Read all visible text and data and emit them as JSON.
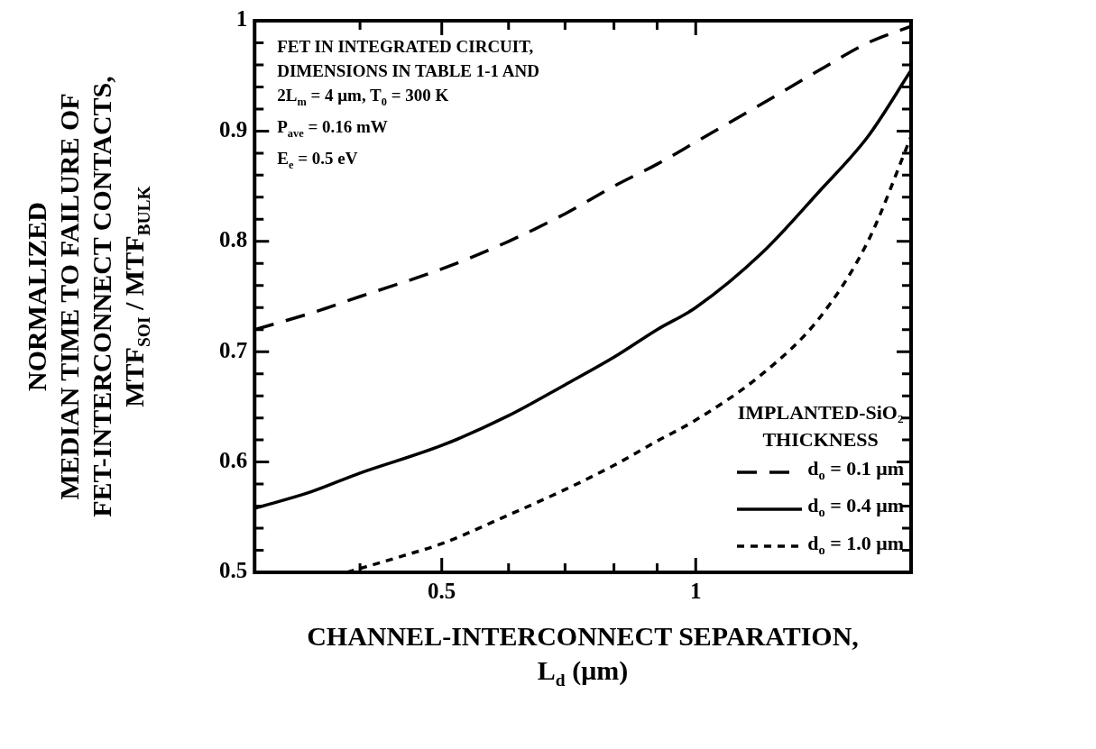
{
  "chart_data": {
    "type": "line",
    "xlabel": "CHANNEL-INTERCONNECT SEPARATION,\nL$_{d}$ (μm)",
    "ylabel": "NORMALIZED\nMEDIAN TIME TO FAILURE OF\nFET-INTERCONNECT CONTACTS,\nMTF$_{SOI}$ / MTF$_{BULK}$",
    "log": "x",
    "xlim": [
      0.3,
      1.8
    ],
    "xticks": [
      {
        "value": 0.4,
        "label": null
      },
      0.5,
      {
        "value": 0.6,
        "label": null
      },
      {
        "value": 0.7,
        "label": null
      },
      {
        "value": 0.8,
        "label": null
      },
      {
        "value": 0.9,
        "label": null
      },
      1
    ],
    "ylim": [
      0.5,
      1
    ],
    "yticks": [
      0.5,
      {
        "value": 0.52,
        "label": null
      },
      {
        "value": 0.54,
        "label": null
      },
      {
        "value": 0.56,
        "label": null
      },
      {
        "value": 0.58,
        "label": null
      },
      0.6,
      {
        "value": 0.62,
        "label": null
      },
      {
        "value": 0.64,
        "label": null
      },
      {
        "value": 0.66,
        "label": null
      },
      {
        "value": 0.68,
        "label": null
      },
      0.7,
      {
        "value": 0.72,
        "label": null
      },
      {
        "value": 0.74,
        "label": null
      },
      {
        "value": 0.76,
        "label": null
      },
      {
        "value": 0.78,
        "label": null
      },
      0.8,
      {
        "value": 0.82,
        "label": null
      },
      {
        "value": 0.84,
        "label": null
      },
      {
        "value": 0.86,
        "label": null
      },
      {
        "value": 0.88,
        "label": null
      },
      0.9,
      {
        "value": 0.92,
        "label": null
      },
      {
        "value": 0.94,
        "label": null
      },
      {
        "value": 0.96,
        "label": null
      },
      {
        "value": 0.98,
        "label": null
      },
      1
    ],
    "grid": false,
    "marker": "none",
    "legend": "bottom right",
    "legend_title": "IMPLANTED-SiO₂\nTHICKNESS",
    "annotations": [
      "FET IN INTEGRATED CIRCUIT,",
      "DIMENSIONS IN TABLE 1-1 AND",
      "2L$_{m}$ = 4 μm,  T$_{0}$ = 300 K",
      "P$_{ave}$ = 0.16 mW",
      "E$_{e}$ = 0.5 eV"
    ],
    "series": [
      {
        "name": "d$_{o}$ = 0.1 μm",
        "color": "#000000",
        "line_style": "dashed",
        "x": [
          0.3,
          0.35,
          0.4,
          0.5,
          0.6,
          0.7,
          0.8,
          0.9,
          1,
          1.2,
          1.4,
          1.6,
          1.8
        ],
        "values": [
          0.72,
          0.735,
          0.75,
          0.775,
          0.8,
          0.825,
          0.85,
          0.87,
          0.89,
          0.925,
          0.955,
          0.98,
          0.995
        ]
      },
      {
        "name": "d$_{o}$ = 0.4 μm",
        "color": "#000000",
        "line_style": "solid",
        "x": [
          0.3,
          0.35,
          0.4,
          0.5,
          0.6,
          0.7,
          0.8,
          0.9,
          1,
          1.2,
          1.4,
          1.6,
          1.8
        ],
        "values": [
          0.558,
          0.573,
          0.59,
          0.615,
          0.642,
          0.67,
          0.695,
          0.72,
          0.74,
          0.79,
          0.845,
          0.895,
          0.955
        ]
      },
      {
        "name": "d$_{o}$ = 1.0 μm",
        "color": "#000000",
        "line_style": "dotted",
        "x": [
          0.386,
          0.45,
          0.5,
          0.6,
          0.7,
          0.8,
          0.9,
          1,
          1.2,
          1.4,
          1.6,
          1.8
        ],
        "values": [
          0.5,
          0.515,
          0.526,
          0.552,
          0.575,
          0.597,
          0.619,
          0.638,
          0.68,
          0.73,
          0.8,
          0.895
        ]
      }
    ]
  }
}
